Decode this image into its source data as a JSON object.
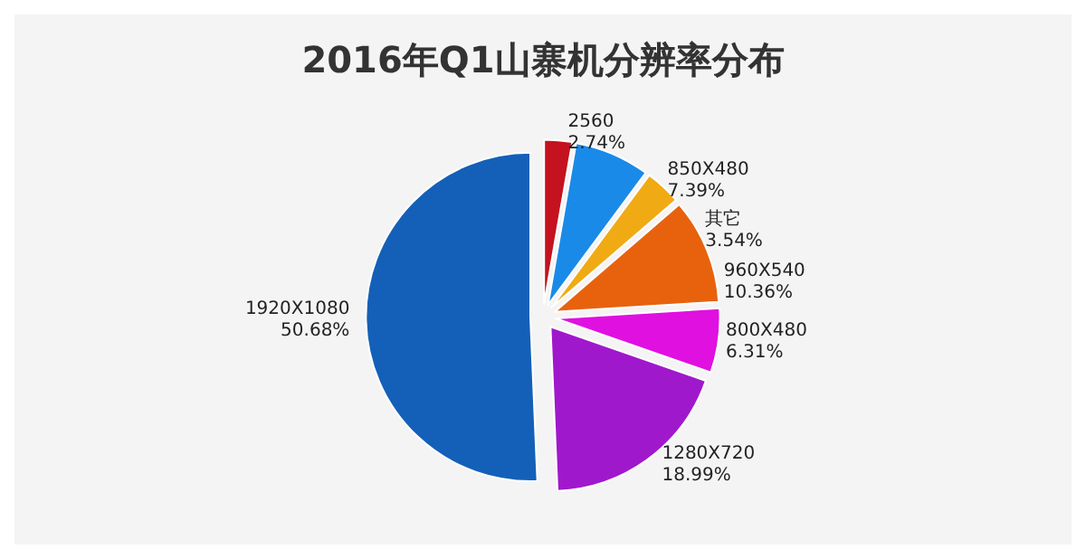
{
  "chart_data": {
    "type": "pie",
    "title": "2016年Q1山寨机分辨率分布",
    "categories": [
      "2560",
      "850X480",
      "其它",
      "960X540",
      "800X480",
      "1280X720",
      "1920X1080"
    ],
    "values": [
      2.74,
      7.39,
      3.54,
      10.36,
      6.31,
      18.99,
      50.68
    ],
    "colors": [
      "#c4121e",
      "#1a8ae8",
      "#f0aa14",
      "#e8620e",
      "#e010e0",
      "#a018cc",
      "#1460b8"
    ],
    "value_labels": [
      "2.74%",
      "7.39%",
      "3.54%",
      "10.36%",
      "6.31%",
      "18.99%",
      "50.68%"
    ],
    "legend": false
  }
}
